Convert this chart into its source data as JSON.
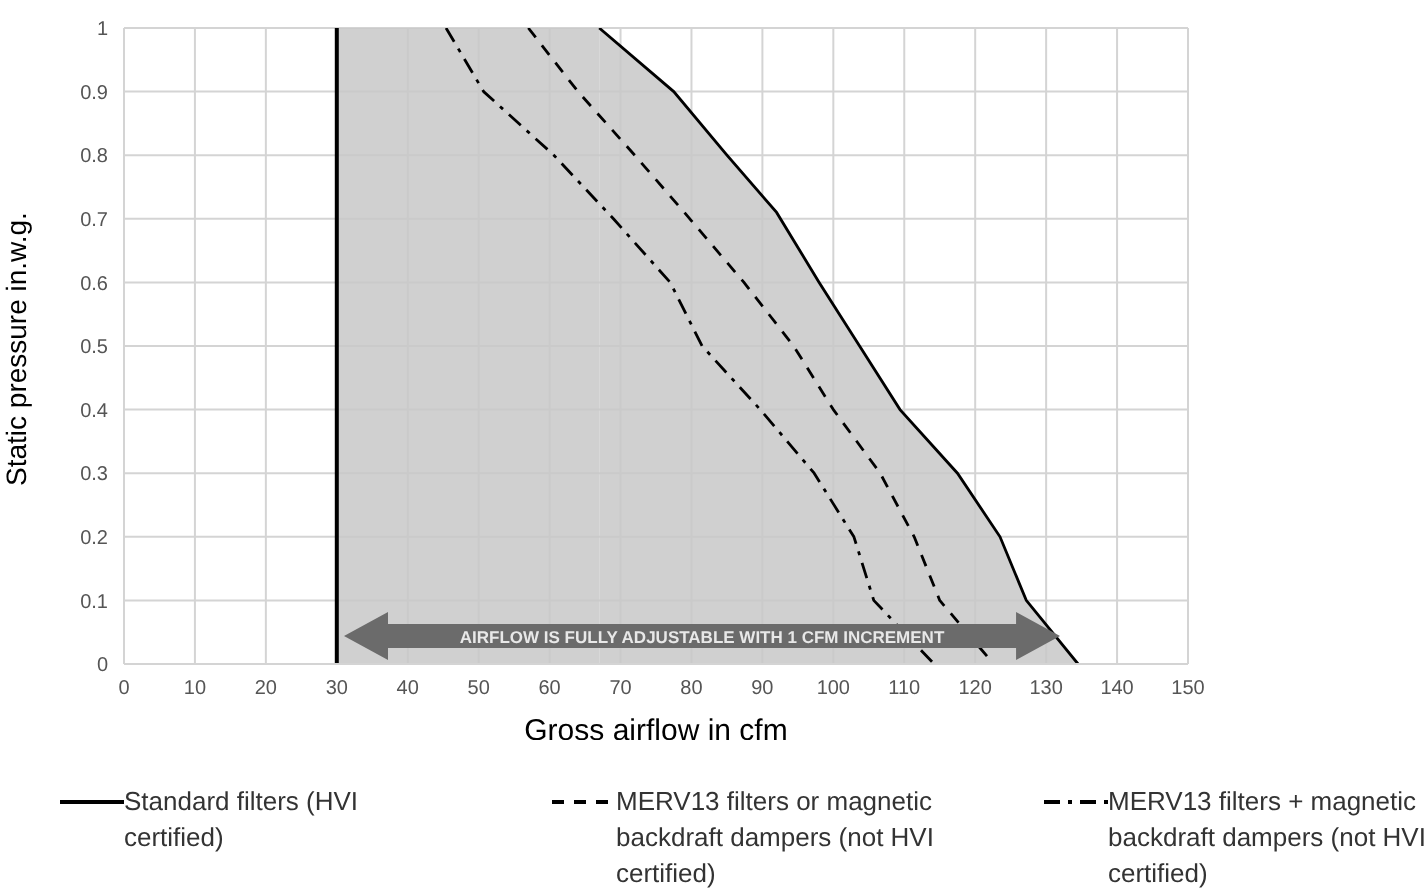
{
  "chart_data": {
    "type": "line",
    "xlabel": "Gross airflow in cfm",
    "ylabel": "Static pressure in.w.g.",
    "xlim": [
      0,
      150
    ],
    "xticks": [
      0,
      10,
      20,
      30,
      40,
      50,
      60,
      70,
      80,
      90,
      100,
      110,
      120,
      130,
      140,
      150
    ],
    "ylim": [
      0,
      1
    ],
    "yticks": [
      0,
      0.1,
      0.2,
      0.3,
      0.4,
      0.5,
      0.6,
      0.7,
      0.8,
      0.9,
      1
    ],
    "grid": true,
    "legend": "bottom",
    "marker": "none",
    "ref_lines": [
      {
        "axis": "x",
        "value": 30,
        "color": "#000000"
      }
    ],
    "bands": [
      {
        "axis": "x",
        "from": 30,
        "to": 67,
        "color": "#c8c8c8"
      }
    ],
    "annotations": [
      "AIRFLOW IS FULLY ADJUSTABLE WITH 1 CFM INCREMENT"
    ],
    "series": [
      {
        "type": "area",
        "name": "Standard filters (HVI certified)",
        "color": "#000000",
        "line_style": "solid",
        "x": [
          67,
          77.5,
          85,
          92,
          98,
          103.7,
          109.4,
          117.5,
          123.5,
          127.2,
          134.5
        ],
        "values": [
          1,
          0.9,
          0.8,
          0.71,
          0.6,
          0.5,
          0.4,
          0.3,
          0.2,
          0.1,
          0
        ]
      },
      {
        "name": "MERV13 filters or magnetic backdraft dampers (not HVI certified)",
        "color": "#000000",
        "line_style": "dashed",
        "x": [
          57,
          64,
          72,
          79,
          87.4,
          94.4,
          100,
          106.6,
          111.4,
          115,
          122.6
        ],
        "values": [
          1,
          0.9,
          0.8,
          0.71,
          0.6,
          0.5,
          0.4,
          0.3,
          0.2,
          0.1,
          0
        ]
      },
      {
        "name": "MERV13 filters + magnetic backdraft dampers (not HVI certified)",
        "color": "#000000",
        "line_style": "dashdot",
        "x": [
          45.4,
          50.7,
          60.6,
          69,
          77,
          81.5,
          89.7,
          97.3,
          102.9,
          105.7,
          114.2
        ],
        "values": [
          1,
          0.9,
          0.8,
          0.7,
          0.6,
          0.5,
          0.4,
          0.3,
          0.2,
          0.1,
          0
        ]
      }
    ]
  }
}
